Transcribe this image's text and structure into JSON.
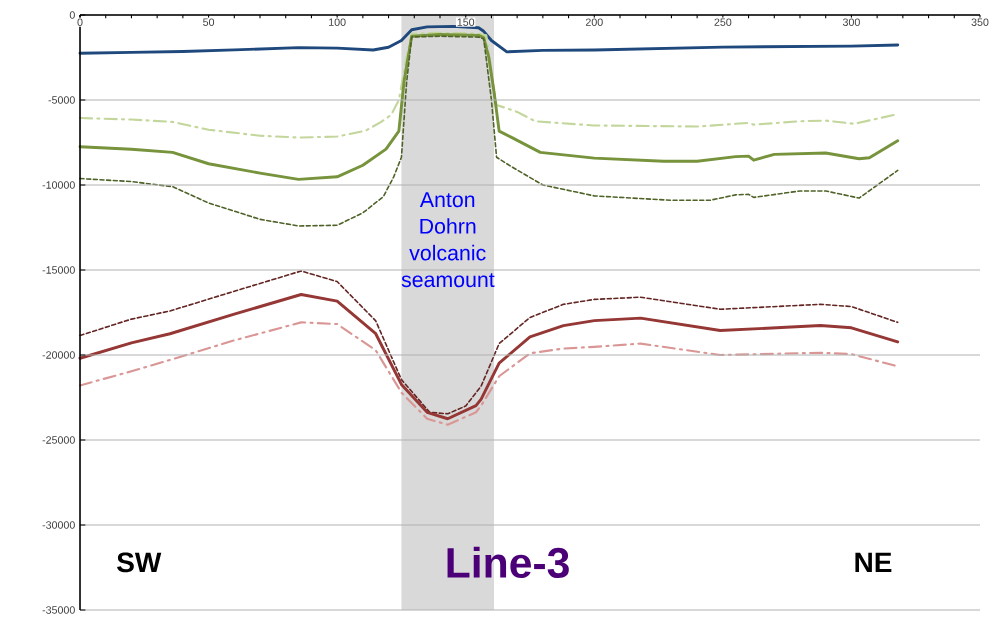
{
  "chart_data": {
    "type": "line",
    "xlim": [
      0,
      350
    ],
    "xticks": [
      0,
      50,
      100,
      150,
      200,
      250,
      300,
      350
    ],
    "ylim": [
      -35000,
      0
    ],
    "yticks": [
      -35000,
      -30000,
      -25000,
      -20000,
      -15000,
      -10000,
      -5000,
      0
    ],
    "grid": "y",
    "marker": "none",
    "bands": [
      {
        "axis": "x",
        "from": 125,
        "to": 161,
        "label": "Anton Dohrn volcanic seamount",
        "color": "#d9d9d9"
      }
    ],
    "annotations": [
      "SW",
      "Line-3",
      "NE"
    ],
    "series": [
      {
        "color": "#1f497d",
        "line_style": "solid",
        "x": [
          0,
          20,
          40,
          60,
          85,
          100,
          114,
          120,
          125,
          129,
          135,
          145,
          155,
          157,
          160,
          166,
          180,
          200,
          250,
          300,
          318
        ],
        "values": [
          -2250,
          -2200,
          -2150,
          -2050,
          -1920,
          -1950,
          -2060,
          -1900,
          -1500,
          -870,
          -700,
          -670,
          -750,
          -960,
          -1500,
          -2170,
          -2080,
          -2060,
          -1890,
          -1830,
          -1770
        ]
      },
      {
        "color": "#c3d69b",
        "line_style": "dashdot",
        "x": [
          0,
          20,
          36,
          50,
          70,
          85,
          100,
          111,
          117,
          121,
          124,
          127,
          129,
          140,
          155,
          158,
          160,
          162,
          170,
          177,
          200,
          240,
          255,
          260,
          262,
          280,
          290,
          301,
          318
        ],
        "values": [
          -6060,
          -6150,
          -6290,
          -6750,
          -7100,
          -7210,
          -7150,
          -6810,
          -6300,
          -5880,
          -5000,
          -2500,
          -1100,
          -1050,
          -1100,
          -1200,
          -3500,
          -5290,
          -5700,
          -6250,
          -6500,
          -6560,
          -6400,
          -6350,
          -6450,
          -6250,
          -6210,
          -6400,
          -5830
        ]
      },
      {
        "color": "#77933c",
        "line_style": "solid",
        "x": [
          0,
          20,
          36,
          50,
          70,
          85,
          100,
          110,
          119,
          124,
          126,
          129,
          140,
          155,
          157,
          159,
          161,
          163,
          168,
          179,
          200,
          227,
          240,
          255,
          260,
          262,
          270,
          290,
          303,
          307,
          318
        ],
        "values": [
          -7750,
          -7900,
          -8080,
          -8750,
          -9300,
          -9670,
          -9520,
          -8840,
          -7890,
          -6830,
          -3930,
          -1250,
          -1150,
          -1200,
          -1330,
          -2500,
          -4520,
          -6830,
          -7210,
          -8080,
          -8420,
          -8600,
          -8600,
          -8330,
          -8300,
          -8540,
          -8200,
          -8120,
          -8460,
          -8400,
          -7400
        ]
      },
      {
        "color": "#4f6228",
        "line_style": "dashed",
        "x": [
          0,
          20,
          36,
          50,
          70,
          85,
          100,
          110,
          118,
          122,
          125,
          127,
          129,
          140,
          155,
          157,
          160,
          162,
          168,
          180,
          200,
          230,
          245,
          255,
          260,
          262,
          280,
          290,
          303,
          318
        ],
        "values": [
          -9620,
          -9800,
          -10100,
          -11060,
          -12020,
          -12410,
          -12370,
          -11640,
          -10680,
          -9520,
          -8370,
          -4000,
          -1290,
          -1250,
          -1300,
          -1400,
          -5000,
          -8370,
          -8940,
          -10000,
          -10640,
          -10900,
          -10900,
          -10580,
          -10550,
          -10730,
          -10350,
          -10350,
          -10770,
          -9140
        ]
      },
      {
        "color": "#632523",
        "line_style": "dashed",
        "x": [
          0,
          20,
          35,
          60,
          86,
          100,
          115,
          125,
          136,
          143,
          150,
          156,
          163,
          175,
          188,
          200,
          218,
          249,
          288,
          300,
          318
        ],
        "values": [
          -18850,
          -17890,
          -17410,
          -16250,
          -15060,
          -15680,
          -17990,
          -21450,
          -23370,
          -23460,
          -23000,
          -21830,
          -19330,
          -17790,
          -17020,
          -16730,
          -16600,
          -17310,
          -17020,
          -17150,
          -18080
        ]
      },
      {
        "color": "#953735",
        "line_style": "solid",
        "x": [
          0,
          20,
          35,
          60,
          86,
          100,
          115,
          125,
          135,
          143,
          154,
          156,
          163,
          175,
          188,
          200,
          218,
          249,
          288,
          300,
          318
        ],
        "values": [
          -20190,
          -19290,
          -18750,
          -17600,
          -16440,
          -16830,
          -18750,
          -21730,
          -23370,
          -23750,
          -22980,
          -22600,
          -20480,
          -18940,
          -18270,
          -17980,
          -17830,
          -18560,
          -18270,
          -18400,
          -19230
        ]
      },
      {
        "color": "#d99694",
        "line_style": "dashdot",
        "x": [
          0,
          20,
          35,
          60,
          86,
          100,
          115,
          125,
          135,
          143,
          154,
          156,
          163,
          175,
          188,
          200,
          218,
          249,
          288,
          300,
          318
        ],
        "values": [
          -21790,
          -20960,
          -20290,
          -19140,
          -18080,
          -18180,
          -19720,
          -22210,
          -23750,
          -24100,
          -23370,
          -22980,
          -21250,
          -19900,
          -19620,
          -19520,
          -19330,
          -20000,
          -19870,
          -19950,
          -20670
        ]
      }
    ]
  }
}
